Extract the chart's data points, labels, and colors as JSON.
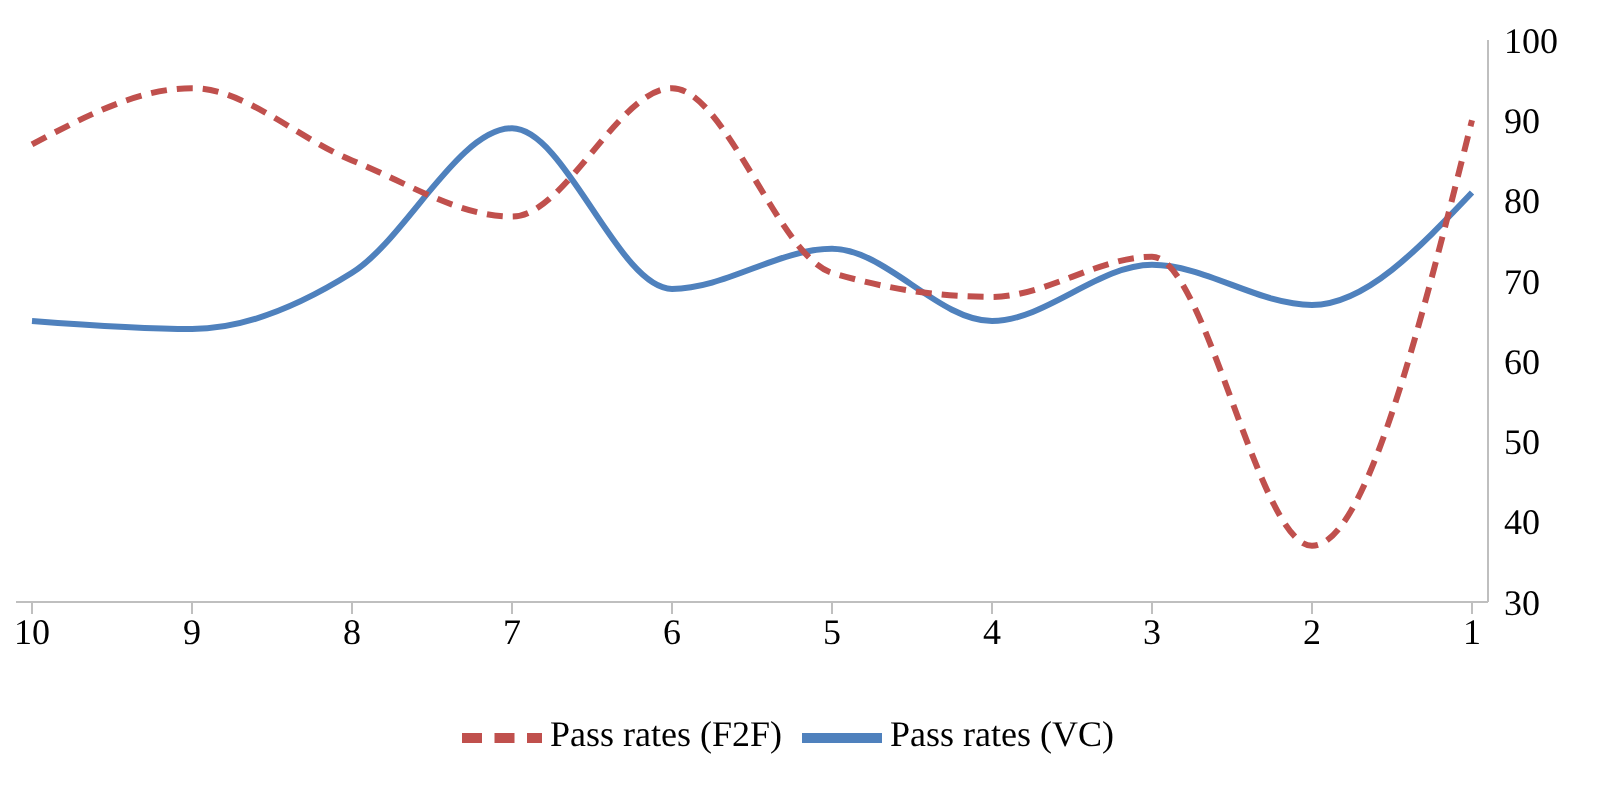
{
  "chart_data": {
    "type": "line",
    "categories": [
      "10",
      "9",
      "8",
      "7",
      "6",
      "5",
      "4",
      "3",
      "2",
      "1"
    ],
    "series": [
      {
        "name": "Pass rates (VC)",
        "color": "#4f81bd",
        "line_style": "solid",
        "values": [
          65,
          64,
          71,
          89,
          69,
          74,
          65,
          72,
          67,
          81
        ]
      },
      {
        "name": "Pass rates (F2F)",
        "color": "#c0504d",
        "line_style": "dashed",
        "values": [
          87,
          94,
          85,
          78,
          94,
          71,
          68,
          73,
          37,
          90
        ]
      }
    ],
    "ylim": [
      30,
      100
    ],
    "yticks": [
      30,
      40,
      50,
      60,
      70,
      80,
      90,
      100
    ],
    "grid": false,
    "legend": "bottom",
    "marker": "none"
  }
}
